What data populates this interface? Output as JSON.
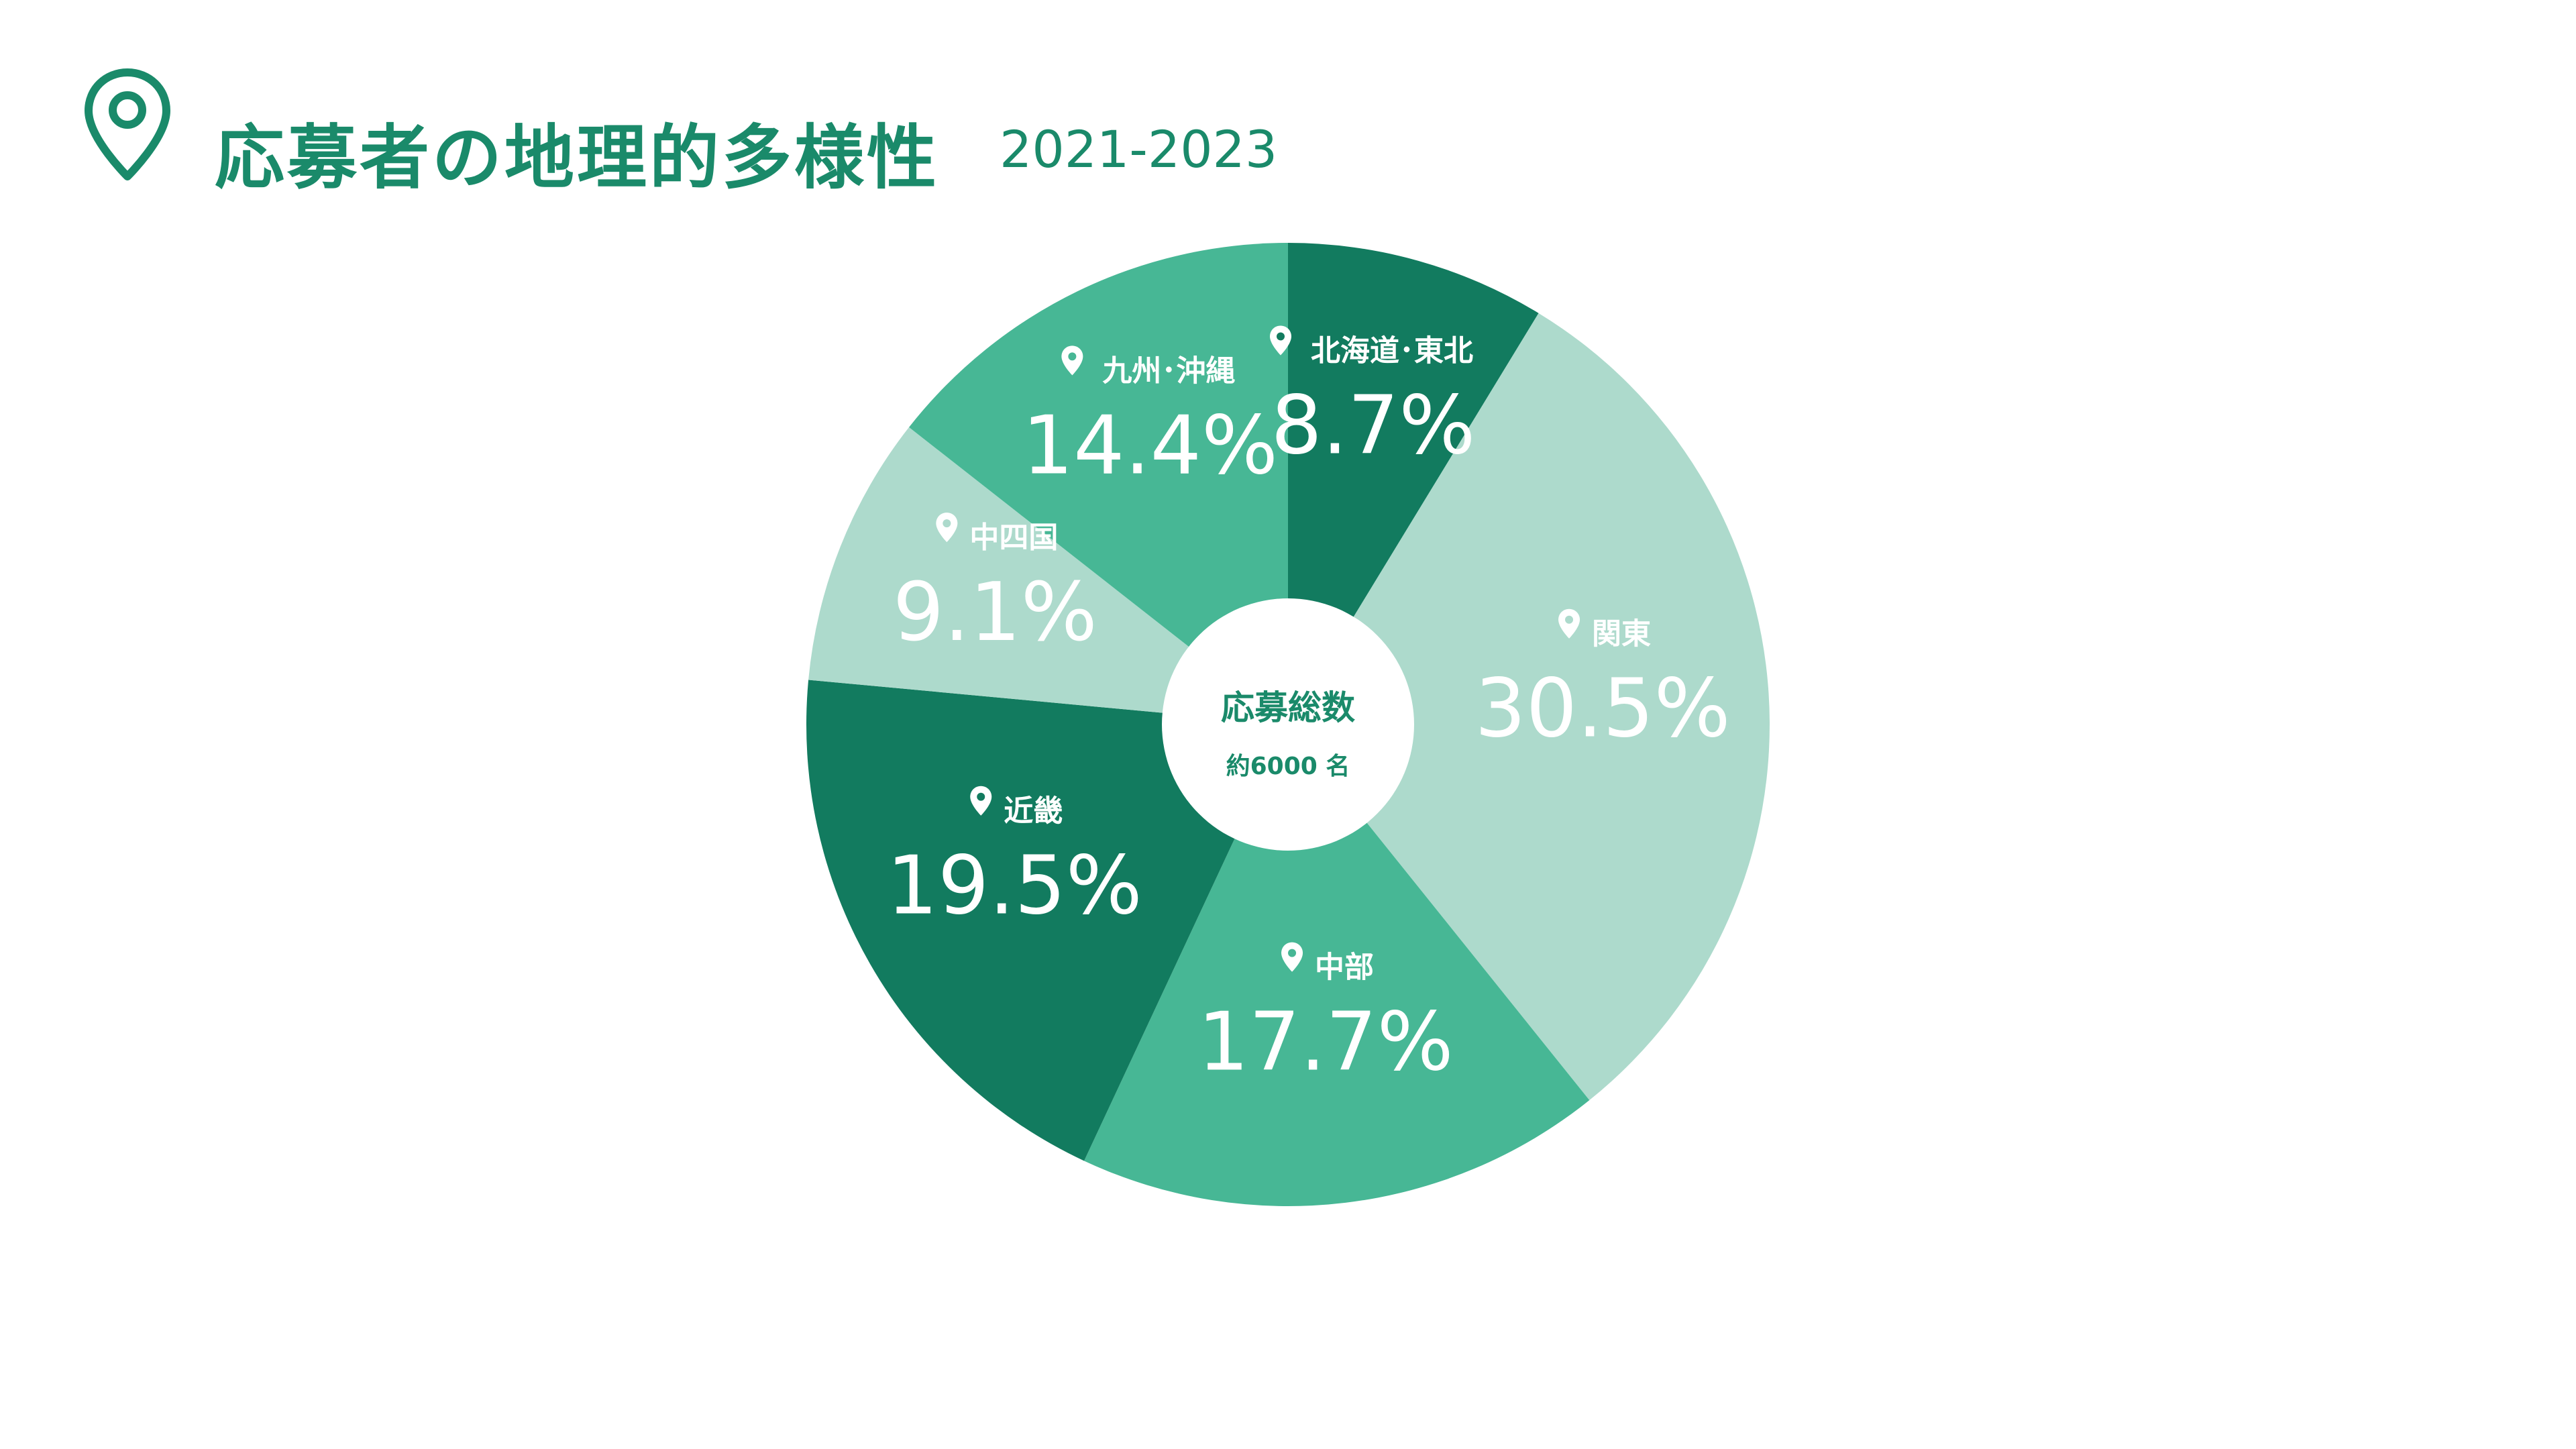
{
  "header": {
    "icon": "map-pin-icon",
    "title": "応募者の地理的多様性",
    "subtitle": "2021-2023"
  },
  "colors": {
    "dark": "#127b5f",
    "medium": "#47b795",
    "light": "#addacc",
    "accent": "#1a8a6a",
    "white": "#ffffff"
  },
  "chart_data": {
    "type": "pie",
    "title": "応募者の地理的多様性",
    "subtitle": "2021-2023",
    "slices": [
      {
        "label": "北海道･東北",
        "value": 8.7,
        "display": "8.7%",
        "color": "#127b5f"
      },
      {
        "label": "関東",
        "value": 30.5,
        "display": "30.5%",
        "color": "#addacc"
      },
      {
        "label": "中部",
        "value": 17.7,
        "display": "17.7%",
        "color": "#47b795"
      },
      {
        "label": "近畿",
        "value": 19.5,
        "display": "19.5%",
        "color": "#127b5f"
      },
      {
        "label": "中四国",
        "value": 9.1,
        "display": "9.1%",
        "color": "#addacc"
      },
      {
        "label": "九州･沖縄",
        "value": 14.4,
        "display": "14.4%",
        "color": "#47b795"
      }
    ],
    "center": {
      "title": "応募総数",
      "subtitle": "約6000 名"
    }
  }
}
